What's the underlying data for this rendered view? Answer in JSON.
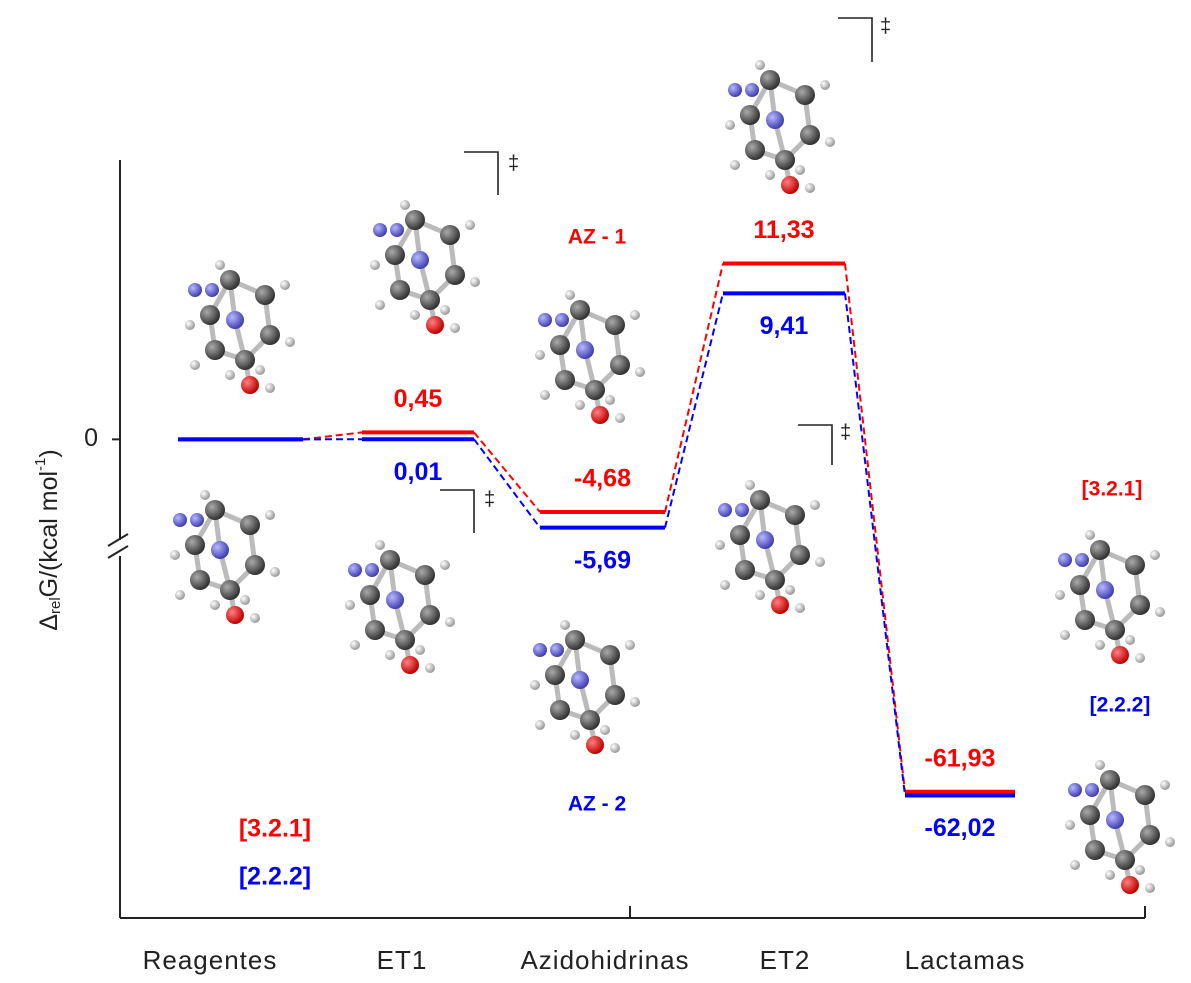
{
  "chart_data": {
    "type": "energy-profile",
    "ylabel": {
      "symbol": "Δ",
      "subscript": "rel",
      "text": "G/(kcal mol",
      "superscript": "-1",
      "close": ")"
    },
    "categories": [
      "Reagentes",
      "ET1",
      "Azidohidrinas",
      "ET2",
      "Lactamas"
    ],
    "series": [
      {
        "name": "[3.2.1]",
        "color": "#ff0000",
        "values": [
          0,
          0.45,
          -4.68,
          11.33,
          -61.93
        ],
        "value_labels": [
          null,
          "0,45",
          "-4,68",
          "11,33",
          "-61,93"
        ]
      },
      {
        "name": "[2.2.2]",
        "color": "#0000ff",
        "values": [
          0,
          0.01,
          -5.69,
          9.41,
          -62.02
        ],
        "value_labels": [
          null,
          "0,01",
          "-5,69",
          "9,41",
          "-62,02"
        ]
      }
    ],
    "ylim": [
      -65,
      18
    ],
    "ybreak": [
      -7,
      -56
    ],
    "yticks": [
      0
    ],
    "annotations": [
      "AZ - 1",
      "AZ - 2",
      "‡"
    ]
  }
}
